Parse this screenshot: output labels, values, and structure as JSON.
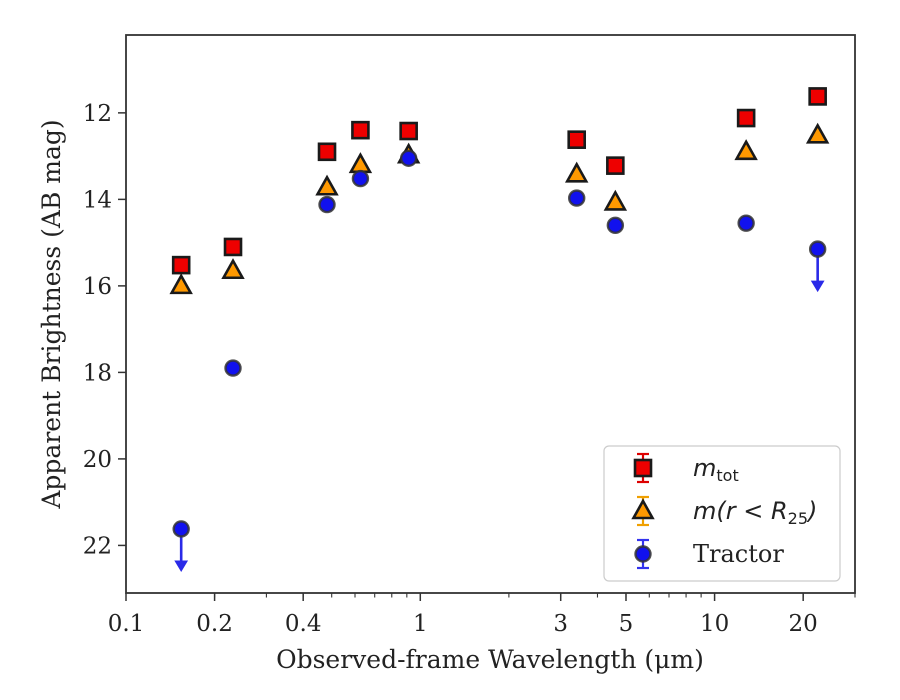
{
  "chart_data": {
    "type": "scatter",
    "title": "",
    "xlabel": "Observed-frame Wavelength (μm)",
    "ylabel": "Apparent Brightness (AB mag)",
    "xscale": "log",
    "xlim": [
      0.1,
      30
    ],
    "ylim": [
      23.1,
      10.2
    ],
    "y_inverted": true,
    "xticks": [
      {
        "value": 0.1,
        "label": "0.1"
      },
      {
        "value": 0.2,
        "label": "0.2"
      },
      {
        "value": 0.4,
        "label": "0.4"
      },
      {
        "value": 1,
        "label": "1"
      },
      {
        "value": 3,
        "label": "3"
      },
      {
        "value": 5,
        "label": "5"
      },
      {
        "value": 10,
        "label": "10"
      },
      {
        "value": 20,
        "label": "20"
      }
    ],
    "yticks": [
      {
        "value": 12,
        "label": "12"
      },
      {
        "value": 14,
        "label": "14"
      },
      {
        "value": 16,
        "label": "16"
      },
      {
        "value": 18,
        "label": "18"
      },
      {
        "value": 20,
        "label": "20"
      },
      {
        "value": 22,
        "label": "22"
      }
    ],
    "legend_position": "lower right",
    "grid": false,
    "series": [
      {
        "name": "m_tot",
        "legend_label": {
          "base": "m",
          "sub": "tot",
          "rest": ""
        },
        "marker": "square",
        "color": "#ee0000",
        "edge_color": "#1a1a1a",
        "errorbar_color": "#dd0000",
        "points": [
          {
            "x": 0.154,
            "y": 15.52
          },
          {
            "x": 0.231,
            "y": 15.1
          },
          {
            "x": 0.482,
            "y": 12.9
          },
          {
            "x": 0.626,
            "y": 12.4
          },
          {
            "x": 0.913,
            "y": 12.42
          },
          {
            "x": 3.4,
            "y": 12.62
          },
          {
            "x": 4.6,
            "y": 13.22
          },
          {
            "x": 12.8,
            "y": 12.12
          },
          {
            "x": 22.4,
            "y": 11.62
          }
        ]
      },
      {
        "name": "m(r < R_25)",
        "legend_label": {
          "base": "m(r < R",
          "sub": "25",
          "rest": ")"
        },
        "marker": "triangle",
        "color": "#ff9900",
        "edge_color": "#1a1a1a",
        "errorbar_color": "#f0a000",
        "points": [
          {
            "x": 0.154,
            "y": 16.0
          },
          {
            "x": 0.231,
            "y": 15.65
          },
          {
            "x": 0.482,
            "y": 13.72
          },
          {
            "x": 0.626,
            "y": 13.2
          },
          {
            "x": 0.913,
            "y": 12.98
          },
          {
            "x": 3.4,
            "y": 13.42
          },
          {
            "x": 4.6,
            "y": 14.07
          },
          {
            "x": 12.8,
            "y": 12.9
          },
          {
            "x": 22.4,
            "y": 12.52
          }
        ]
      },
      {
        "name": "Tractor",
        "legend_label": {
          "base": "Tractor",
          "sub": "",
          "rest": ""
        },
        "marker": "circle",
        "color": "#1111ee",
        "edge_color": "#333333",
        "errorbar_color": "#3333ee",
        "points": [
          {
            "x": 0.154,
            "y": 21.62,
            "upper_limit": true
          },
          {
            "x": 0.231,
            "y": 17.9
          },
          {
            "x": 0.482,
            "y": 14.12
          },
          {
            "x": 0.626,
            "y": 13.52
          },
          {
            "x": 0.913,
            "y": 13.05
          },
          {
            "x": 3.4,
            "y": 13.97
          },
          {
            "x": 4.6,
            "y": 14.6
          },
          {
            "x": 12.8,
            "y": 14.55
          },
          {
            "x": 22.4,
            "y": 15.15,
            "upper_limit": true
          }
        ]
      }
    ]
  }
}
